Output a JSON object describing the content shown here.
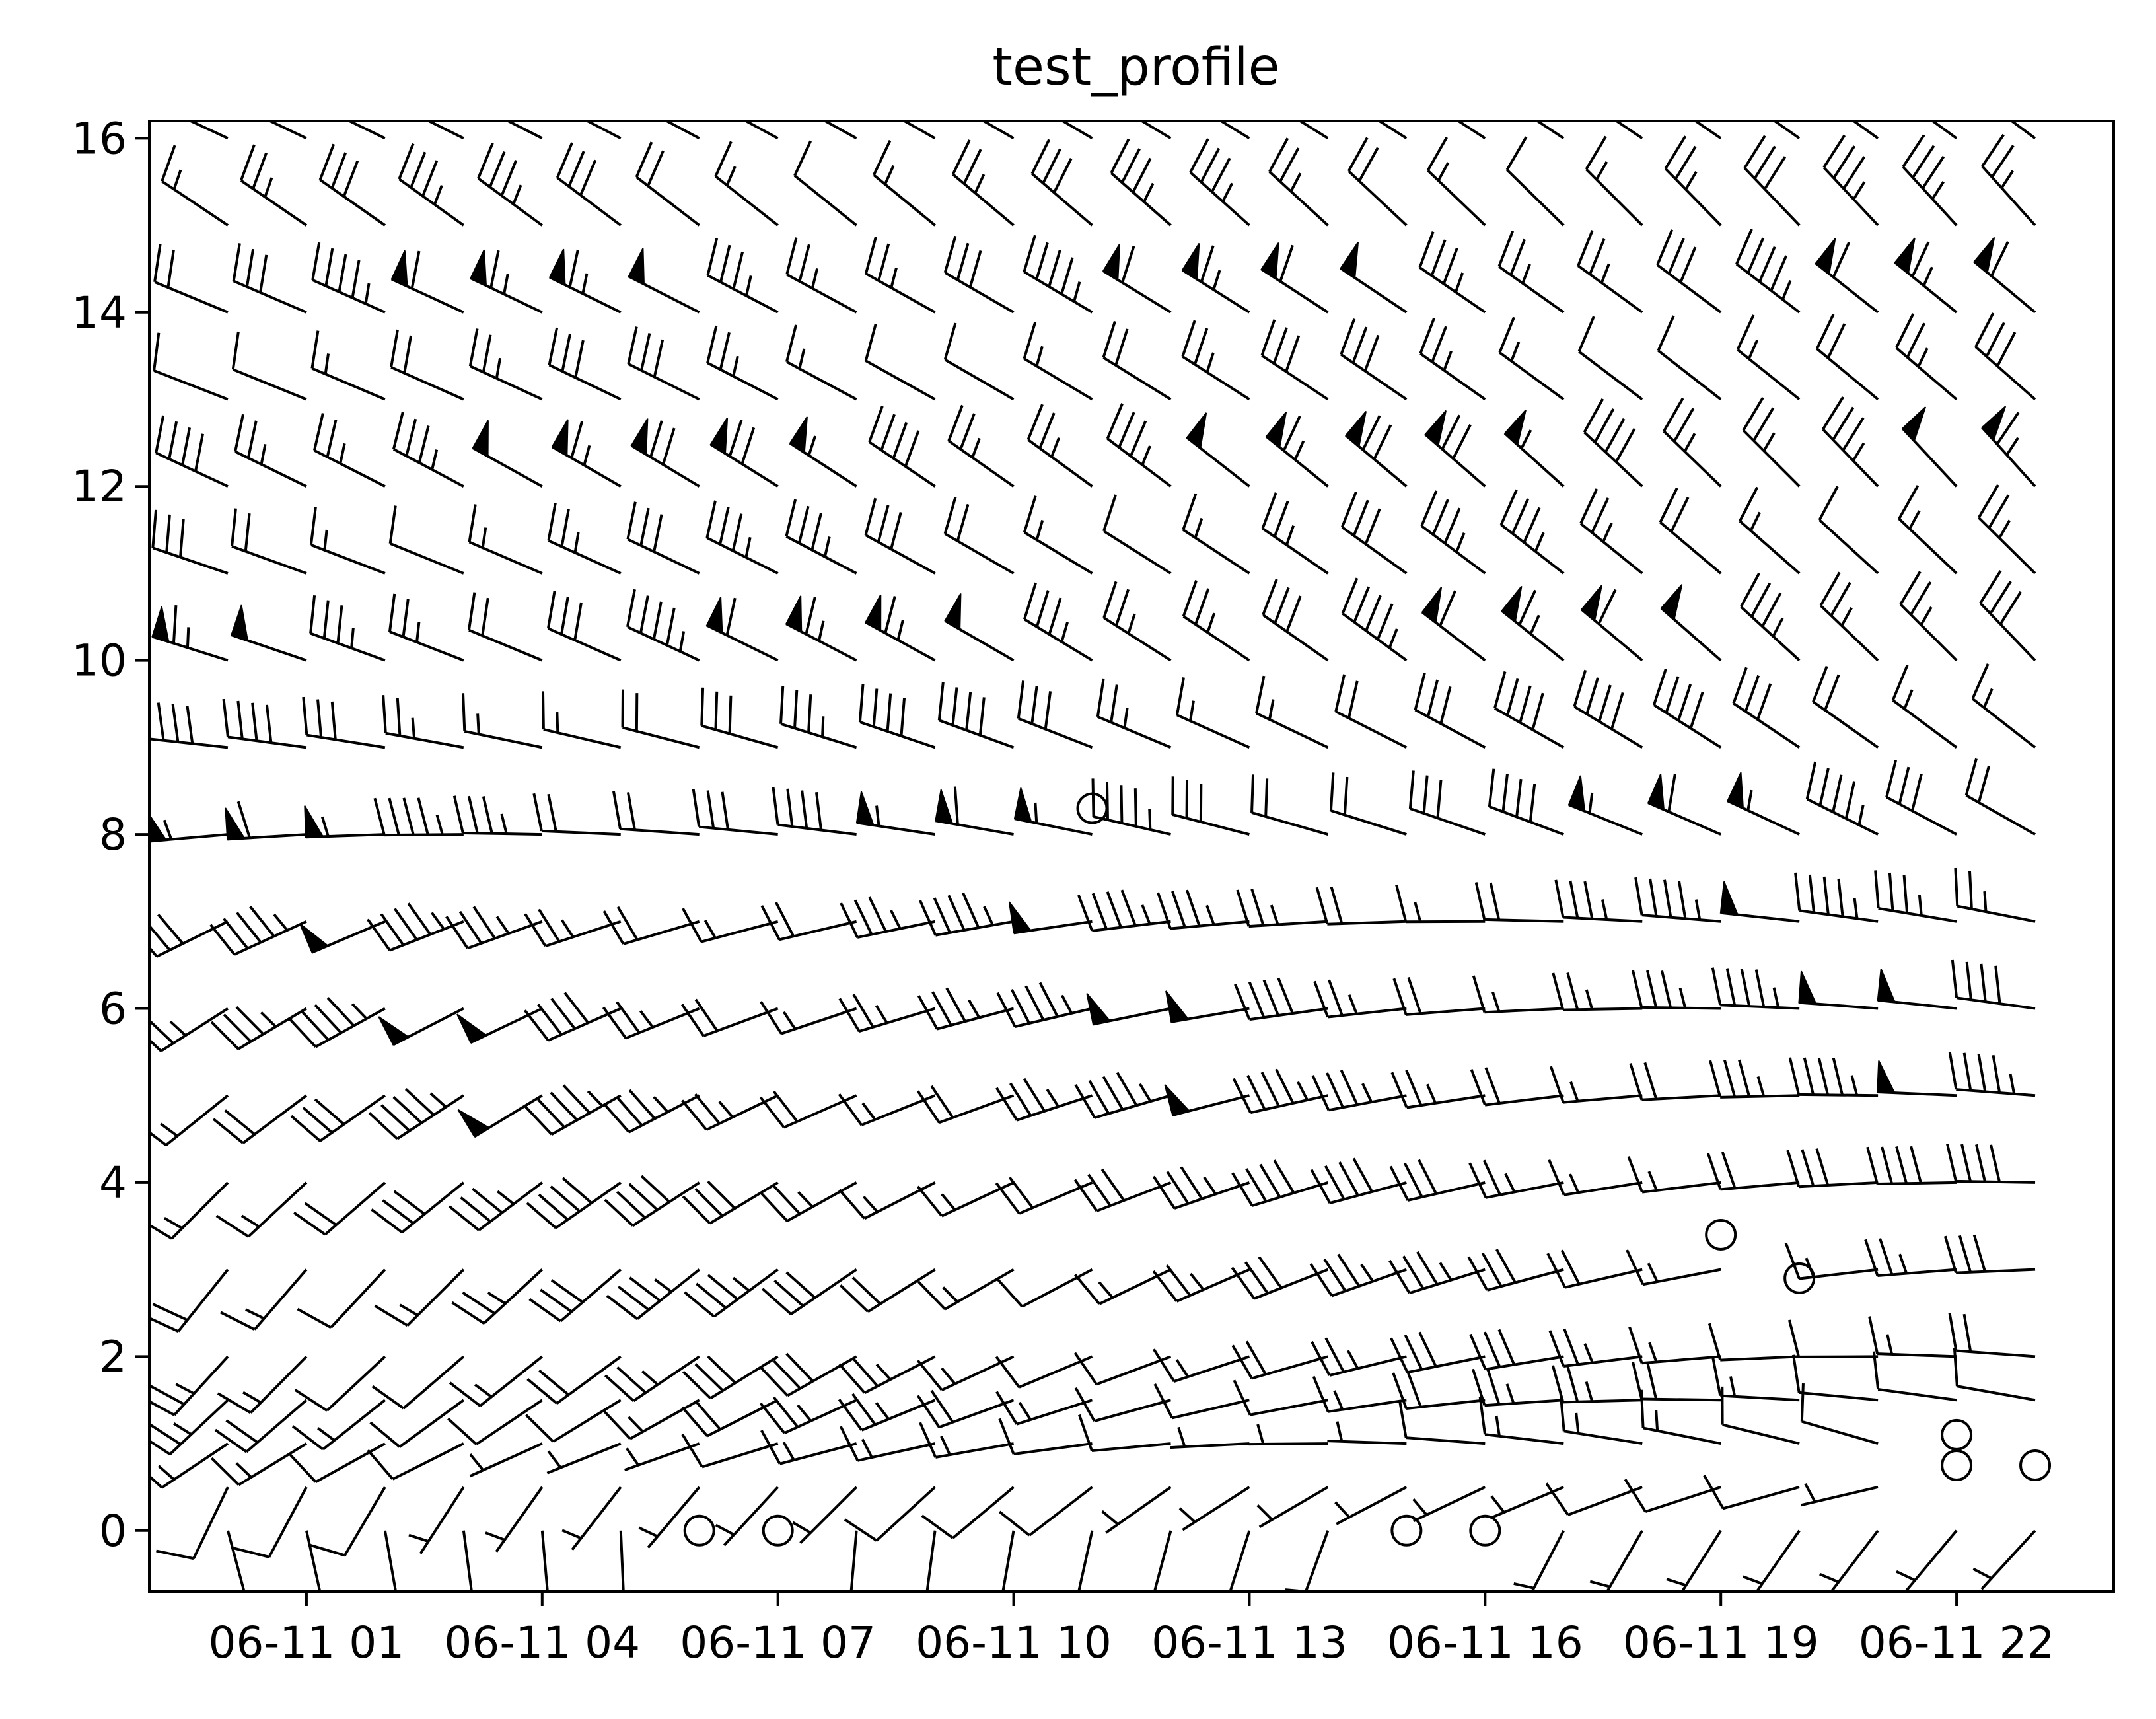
{
  "chart_data": {
    "type": "barbs",
    "title": "test_profile",
    "xlabel": "",
    "ylabel": "",
    "x_ticks": [
      "06-11 01",
      "06-11 04",
      "06-11 07",
      "06-11 10",
      "06-11 13",
      "06-11 16",
      "06-11 19",
      "06-11 22"
    ],
    "x_tick_hours": [
      1,
      4,
      7,
      10,
      13,
      16,
      19,
      22
    ],
    "xlim_hours": [
      -1,
      24
    ],
    "y_ticks": [
      0,
      2,
      4,
      6,
      8,
      10,
      12,
      14,
      16
    ],
    "ylim": [
      -0.7,
      16.2
    ],
    "grid": false,
    "legend": "none",
    "barb_color": "#000000",
    "times_hours": [
      0,
      1,
      2,
      3,
      4,
      5,
      6,
      7,
      8,
      9,
      10,
      11,
      12,
      13,
      14,
      15,
      16,
      17,
      18,
      19,
      20,
      21,
      22,
      23
    ],
    "levels": [
      0,
      0.5,
      1,
      1.5,
      2,
      3,
      4,
      5,
      6,
      7,
      8,
      9,
      10,
      11,
      12,
      13,
      14,
      15,
      16
    ],
    "speed_by_level": [
      5,
      8,
      12,
      20,
      25,
      30,
      35,
      40,
      42,
      40,
      50,
      35,
      55,
      30,
      60,
      25,
      55,
      30,
      45
    ],
    "direction_by_level": [
      190,
      230,
      260,
      250,
      245,
      240,
      245,
      250,
      255,
      260,
      280,
      290,
      300,
      300,
      305,
      300,
      300,
      310,
      300
    ],
    "direction_trend_deg_per_hour": 2.5,
    "calm_points": [
      [
        11,
        8.3
      ],
      [
        19,
        3.4
      ],
      [
        20,
        2.9
      ],
      [
        22,
        1.1
      ],
      [
        22,
        0.75
      ],
      [
        23,
        0.75
      ]
    ]
  }
}
